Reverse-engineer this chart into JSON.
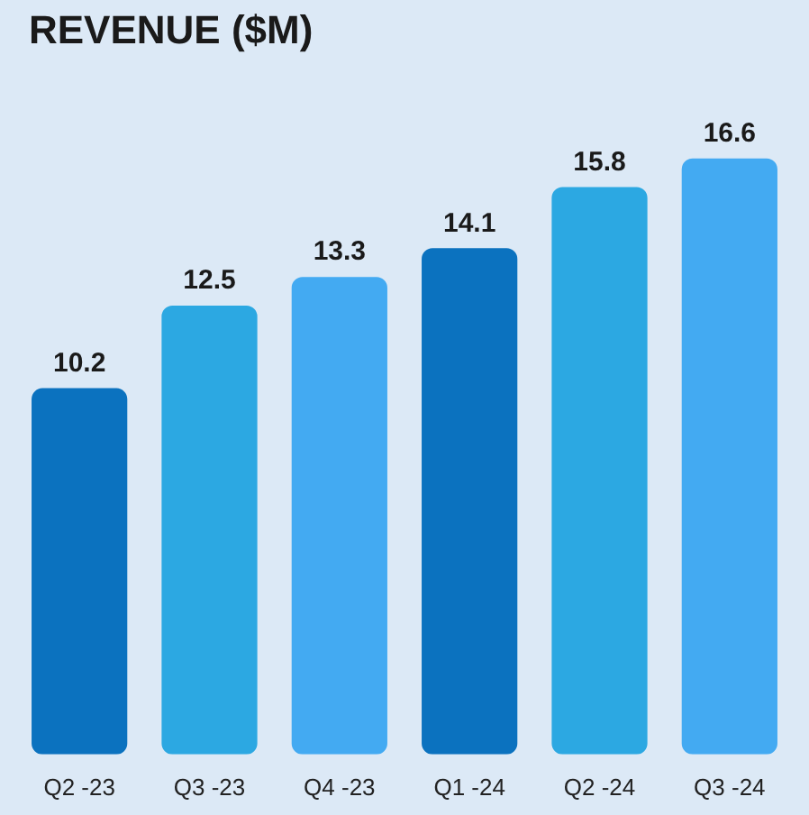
{
  "chart_data": {
    "type": "bar",
    "title": "REVENUE ($M)",
    "categories": [
      "Q2 -23",
      "Q3 -23",
      "Q4 -23",
      "Q1 -24",
      "Q2 -24",
      "Q3 -24"
    ],
    "values": [
      10.2,
      12.5,
      13.3,
      14.1,
      15.8,
      16.6
    ],
    "colors": [
      "#0b72bf",
      "#2ca8e2",
      "#43aaf2",
      "#0b72bf",
      "#2ca8e2",
      "#43aaf2"
    ],
    "data_labels": true,
    "grid": false,
    "tick_labels": "x",
    "legend": false
  }
}
